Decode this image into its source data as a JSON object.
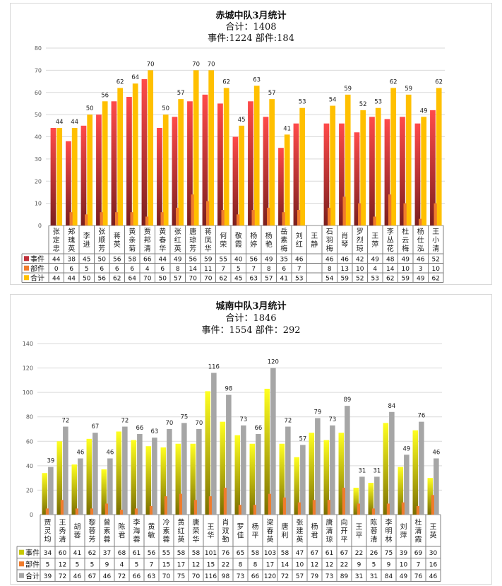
{
  "chart_data": [
    {
      "type": "bar",
      "title": "赤城中队3月统计",
      "subtitle_lines": [
        "合计：1408",
        "事件:1224 部件:184"
      ],
      "ylim": [
        0,
        80
      ],
      "yticks": [
        0,
        10,
        20,
        30,
        40,
        50,
        60,
        70,
        80
      ],
      "grid": true,
      "legend": "bottom-left data table",
      "categories": [
        "张定忠",
        "郑瑰英",
        "李进",
        "张顺芳",
        "蒋英",
        "黄亲菊",
        "贾邦清",
        "黄春华",
        "张红英",
        "唐琼芳",
        "蒋凤华",
        "何荣",
        "敬霞",
        "杨婷",
        "杨艳",
        "岳素梅",
        "刘红",
        "王静",
        "石羽梅",
        "肖琴",
        "罗烈琼",
        "王萍",
        "李丛花",
        "杜云梅",
        "杨仕泓",
        "王小清"
      ],
      "series": [
        {
          "name": "事件",
          "color": "#e03a3a",
          "values": [
            44,
            38,
            45,
            50,
            56,
            58,
            66,
            44,
            49,
            56,
            59,
            55,
            40,
            56,
            49,
            35,
            46,
            null,
            46,
            46,
            42,
            49,
            48,
            49,
            46,
            52
          ]
        },
        {
          "name": "部件",
          "color": "#f07c2c",
          "values": [
            0,
            6,
            5,
            6,
            6,
            6,
            4,
            6,
            8,
            14,
            11,
            7,
            5,
            7,
            8,
            6,
            7,
            null,
            8,
            13,
            10,
            4,
            14,
            10,
            3,
            10
          ]
        },
        {
          "name": "合计",
          "color": "#ffc000",
          "values": [
            44,
            44,
            50,
            56,
            62,
            64,
            70,
            50,
            57,
            70,
            70,
            62,
            45,
            63,
            57,
            41,
            53,
            null,
            54,
            59,
            52,
            53,
            62,
            59,
            49,
            62
          ],
          "data_labels": true
        }
      ]
    },
    {
      "type": "bar",
      "title": "城南中队3月统计",
      "subtitle_lines": [
        "合计：1846",
        "事件：1554 部件：292"
      ],
      "ylim": [
        0,
        140
      ],
      "yticks": [
        0,
        20,
        40,
        60,
        80,
        100,
        120,
        140
      ],
      "grid": true,
      "legend": "bottom-left data table",
      "categories": [
        "贾灵均",
        "王秀清",
        "胡蓉",
        "黎蓉芳",
        "曾素蓉",
        "陈君",
        "李海蓉",
        "黄敏",
        "冷素蓉",
        "黄红英",
        "唐荣华",
        "王华",
        "肖双勤",
        "罗佳",
        "杨平",
        "梁春英",
        "唐利",
        "张建英",
        "杨君",
        "唐清琼",
        "向开平",
        "王平",
        "陈蓉清",
        "李明林",
        "刘萍",
        "杜清霞",
        "王英"
      ],
      "series": [
        {
          "name": "事件",
          "color": "#f2ea00",
          "values": [
            34,
            60,
            41,
            62,
            37,
            68,
            61,
            56,
            55,
            58,
            58,
            101,
            76,
            65,
            58,
            103,
            58,
            47,
            67,
            61,
            67,
            22,
            26,
            75,
            39,
            69,
            30
          ]
        },
        {
          "name": "部件",
          "color": "#f07c2c",
          "values": [
            5,
            12,
            5,
            5,
            9,
            4,
            5,
            7,
            15,
            17,
            12,
            15,
            22,
            8,
            8,
            17,
            14,
            10,
            12,
            12,
            22,
            9,
            5,
            9,
            10,
            7,
            16
          ]
        },
        {
          "name": "合计",
          "color": "#a6a6a6",
          "values": [
            39,
            72,
            46,
            67,
            46,
            72,
            66,
            63,
            70,
            75,
            70,
            116,
            98,
            73,
            66,
            120,
            72,
            57,
            79,
            73,
            89,
            31,
            31,
            84,
            49,
            76,
            46
          ],
          "data_labels": true
        }
      ]
    }
  ]
}
